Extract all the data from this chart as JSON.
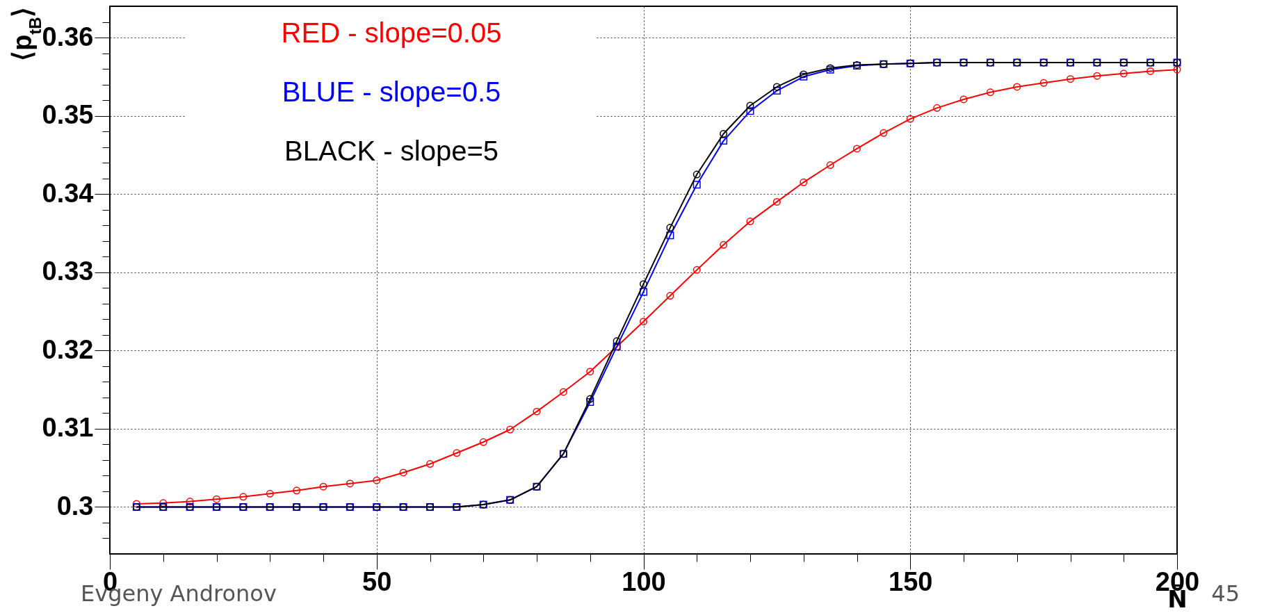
{
  "chart_data": {
    "type": "line",
    "xlabel": "N̄",
    "ylabel": "⟨p$_{tB}$⟩",
    "x": [
      5,
      10,
      15,
      20,
      25,
      30,
      35,
      40,
      45,
      50,
      55,
      60,
      65,
      70,
      75,
      80,
      85,
      90,
      95,
      100,
      105,
      110,
      115,
      120,
      125,
      130,
      135,
      140,
      145,
      150,
      155,
      160,
      165,
      170,
      175,
      180,
      185,
      190,
      195,
      200
    ],
    "series": [
      {
        "name": "RED - slope=0.05",
        "color": "#ff0000",
        "marker": "circle",
        "values": [
          0.3004,
          0.3005,
          0.3007,
          0.301,
          0.3013,
          0.3017,
          0.3021,
          0.3026,
          0.303,
          0.3034,
          0.3044,
          0.3055,
          0.3069,
          0.3083,
          0.3099,
          0.3122,
          0.3147,
          0.3173,
          0.3205,
          0.3237,
          0.327,
          0.3303,
          0.3335,
          0.3365,
          0.339,
          0.3415,
          0.3437,
          0.3458,
          0.3478,
          0.3496,
          0.351,
          0.3521,
          0.353,
          0.3537,
          0.3542,
          0.3547,
          0.3551,
          0.3554,
          0.3557,
          0.3559
        ]
      },
      {
        "name": "BLUE - slope=0.5",
        "color": "#0000ff",
        "marker": "square",
        "values": [
          0.3,
          0.3,
          0.3,
          0.3,
          0.3,
          0.3,
          0.3,
          0.3,
          0.3,
          0.3,
          0.3,
          0.3,
          0.3,
          0.3003,
          0.3009,
          0.3026,
          0.3068,
          0.3134,
          0.3205,
          0.3275,
          0.3347,
          0.3412,
          0.3468,
          0.3506,
          0.3532,
          0.355,
          0.3559,
          0.3564,
          0.3566,
          0.3567,
          0.3568,
          0.3568,
          0.3568,
          0.3568,
          0.3568,
          0.3568,
          0.3568,
          0.3568,
          0.3568,
          0.3568
        ]
      },
      {
        "name": "BLACK - slope=5",
        "color": "#000000",
        "marker": "circle",
        "values": [
          0.3,
          0.3,
          0.3,
          0.3,
          0.3,
          0.3,
          0.3,
          0.3,
          0.3,
          0.3,
          0.3,
          0.3,
          0.3,
          0.3003,
          0.3009,
          0.3026,
          0.3068,
          0.3138,
          0.3212,
          0.3285,
          0.3357,
          0.3425,
          0.3477,
          0.3513,
          0.3537,
          0.3553,
          0.3561,
          0.3565,
          0.3566,
          0.3567,
          0.3568,
          0.3568,
          0.3568,
          0.3568,
          0.3568,
          0.3568,
          0.3568,
          0.3568,
          0.3568,
          0.3568
        ]
      }
    ],
    "xlim": [
      0,
      200
    ],
    "xticks": [
      0,
      {
        "value": 10,
        "label": null
      },
      {
        "value": 20,
        "label": null
      },
      {
        "value": 30,
        "label": null
      },
      {
        "value": 40,
        "label": null
      },
      50,
      {
        "value": 60,
        "label": null
      },
      {
        "value": 70,
        "label": null
      },
      {
        "value": 80,
        "label": null
      },
      {
        "value": 90,
        "label": null
      },
      100,
      {
        "value": 110,
        "label": null
      },
      {
        "value": 120,
        "label": null
      },
      {
        "value": 130,
        "label": null
      },
      {
        "value": 140,
        "label": null
      },
      150,
      {
        "value": 160,
        "label": null
      },
      {
        "value": 170,
        "label": null
      },
      {
        "value": 180,
        "label": null
      },
      {
        "value": 190,
        "label": null
      },
      200
    ],
    "ylim": [
      0.294,
      0.364
    ],
    "yticks": [
      {
        "value": 0.296,
        "label": null
      },
      {
        "value": 0.298,
        "label": null
      },
      0.3,
      {
        "value": 0.302,
        "label": null
      },
      {
        "value": 0.304,
        "label": null
      },
      {
        "value": 0.306,
        "label": null
      },
      {
        "value": 0.308,
        "label": null
      },
      0.31,
      {
        "value": 0.312,
        "label": null
      },
      {
        "value": 0.314,
        "label": null
      },
      {
        "value": 0.316,
        "label": null
      },
      {
        "value": 0.318,
        "label": null
      },
      0.32,
      {
        "value": 0.322,
        "label": null
      },
      {
        "value": 0.324,
        "label": null
      },
      {
        "value": 0.326,
        "label": null
      },
      {
        "value": 0.328,
        "label": null
      },
      0.33,
      {
        "value": 0.332,
        "label": null
      },
      {
        "value": 0.334,
        "label": null
      },
      {
        "value": 0.336,
        "label": null
      },
      {
        "value": 0.338,
        "label": null
      },
      0.34,
      {
        "value": 0.342,
        "label": null
      },
      {
        "value": 0.344,
        "label": null
      },
      {
        "value": 0.346,
        "label": null
      },
      {
        "value": 0.348,
        "label": null
      },
      0.35,
      {
        "value": 0.352,
        "label": null
      },
      {
        "value": 0.354,
        "label": null
      },
      {
        "value": 0.356,
        "label": null
      },
      {
        "value": 0.358,
        "label": null
      },
      0.36,
      {
        "value": 0.362,
        "label": null
      }
    ],
    "grid": true,
    "legend": "top left",
    "line_style": "solid",
    "annotations": [
      "Evgeny Andronov",
      "45"
    ]
  }
}
